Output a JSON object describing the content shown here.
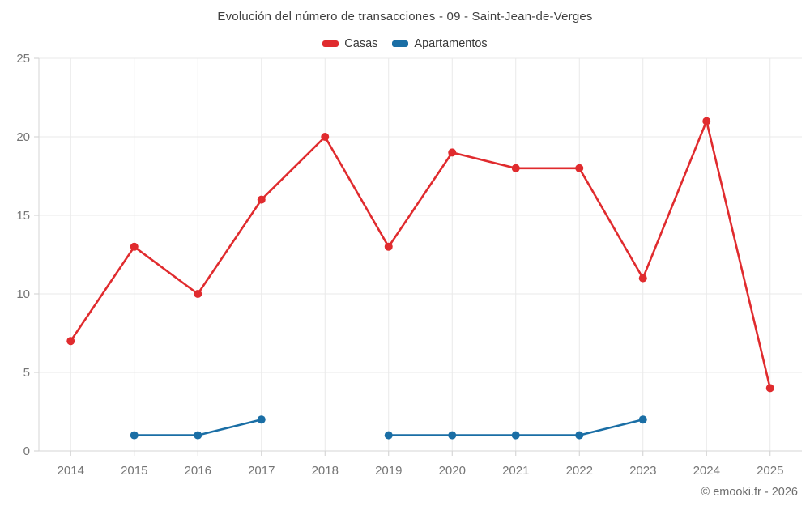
{
  "header": {
    "title": "Evolución del número de transacciones - 09 - Saint-Jean-de-Verges"
  },
  "legend": [
    {
      "label": "Casas",
      "color": "#e02b2e"
    },
    {
      "label": "Apartamentos",
      "color": "#1a6ea5"
    }
  ],
  "footer": {
    "credit": "© emooki.fr - 2026"
  },
  "chart_data": {
    "type": "line",
    "title": "Evolución del número de transacciones - 09 - Saint-Jean-de-Verges",
    "categories": [
      "2014",
      "2015",
      "2016",
      "2017",
      "2018",
      "2019",
      "2020",
      "2021",
      "2022",
      "2023",
      "2024",
      "2025"
    ],
    "series": [
      {
        "name": "Casas",
        "color": "#e02b2e",
        "values": [
          7,
          13,
          10,
          16,
          20,
          13,
          19,
          18,
          18,
          11,
          21,
          4
        ]
      },
      {
        "name": "Apartamentos",
        "color": "#1a6ea5",
        "values": [
          null,
          1,
          1,
          2,
          null,
          1,
          1,
          1,
          1,
          2,
          null,
          null
        ]
      }
    ],
    "xlabel": "",
    "ylabel": "",
    "ylim": [
      0,
      25
    ],
    "yticks": [
      0,
      5,
      10,
      15,
      20,
      25
    ],
    "grid": true,
    "legend_position": "top",
    "colors": {
      "gridline": "#e9e9e9",
      "axis": "#d6d6d6",
      "tick": "#cfcfcf",
      "label": "#757575"
    }
  }
}
